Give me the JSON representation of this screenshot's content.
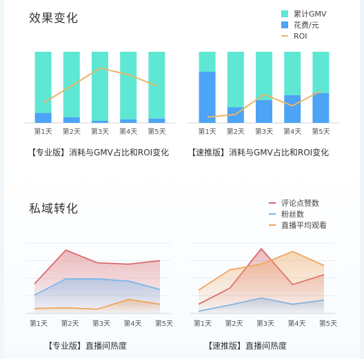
{
  "section1": {
    "title": "效果变化",
    "legend": [
      {
        "label": "累计GMV",
        "color": "#5ee7d3"
      },
      {
        "label": "花费/元",
        "color": "#4da3f5"
      },
      {
        "label": "ROI",
        "color": "#e9b46a"
      }
    ]
  },
  "section2": {
    "title": "私域转化",
    "legend": [
      {
        "label": "评论点赞数",
        "color": "#d9686b"
      },
      {
        "label": "粉丝数",
        "color": "#7ab6ea"
      },
      {
        "label": "直播平均观看",
        "color": "#f0a55c"
      }
    ]
  },
  "chart_data": [
    {
      "type": "bar",
      "title": "【专业版】消耗与GMV占比和ROI变化",
      "categories": [
        "第1天",
        "第2天",
        "第3天",
        "第4天",
        "第5天"
      ],
      "ylim": [
        0,
        100
      ],
      "series": [
        {
          "name": "花费/元",
          "values": [
            14,
            8,
            3,
            5,
            6
          ],
          "color": "#4da3f5"
        },
        {
          "name": "累计GMV",
          "values": [
            86,
            92,
            97,
            95,
            94
          ],
          "color": "#5ee7d3"
        },
        {
          "name": "ROI",
          "values": [
            28,
            52,
            77,
            68,
            52
          ],
          "color": "#e9b46a"
        }
      ]
    },
    {
      "type": "bar",
      "title": "【速推版】消耗与GMV占比和ROI变化",
      "categories": [
        "第1天",
        "第2天",
        "第3天",
        "第4天",
        "第5天"
      ],
      "ylim": [
        0,
        100
      ],
      "series": [
        {
          "name": "花费/元",
          "values": [
            72,
            22,
            32,
            39,
            42
          ],
          "color": "#4da3f5"
        },
        {
          "name": "累计GMV",
          "values": [
            28,
            78,
            68,
            61,
            58
          ],
          "color": "#5ee7d3"
        },
        {
          "name": "ROI",
          "values": [
            8,
            12,
            40,
            24,
            45
          ],
          "color": "#e9b46a"
        }
      ]
    },
    {
      "type": "area",
      "title": "【专业版】直播间热度",
      "categories": [
        "第1天",
        "第2天",
        "第3天",
        "第4天",
        "第5天"
      ],
      "ylim": [
        0,
        100
      ],
      "series": [
        {
          "name": "评论点赞数",
          "values": [
            42,
            90,
            72,
            70,
            75
          ],
          "color": "#d9686b"
        },
        {
          "name": "粉丝数",
          "values": [
            26,
            49,
            49,
            46,
            34
          ],
          "color": "#7ab6ea"
        },
        {
          "name": "直播平均观看",
          "values": [
            7,
            8,
            6,
            20,
            13
          ],
          "color": "#f0a55c"
        }
      ]
    },
    {
      "type": "area",
      "title": "【速推版】直播间热度",
      "categories": [
        "第1天",
        "第2天",
        "第3天",
        "第4天",
        "第5天"
      ],
      "ylim": [
        0,
        100
      ],
      "series": [
        {
          "name": "评论点赞数",
          "values": [
            13,
            36,
            92,
            41,
            55
          ],
          "color": "#d9686b"
        },
        {
          "name": "粉丝数",
          "values": [
            3,
            12,
            22,
            13,
            19
          ],
          "color": "#7ab6ea"
        },
        {
          "name": "直播平均观看",
          "values": [
            33,
            62,
            70,
            88,
            68
          ],
          "color": "#f0a55c"
        }
      ]
    }
  ]
}
